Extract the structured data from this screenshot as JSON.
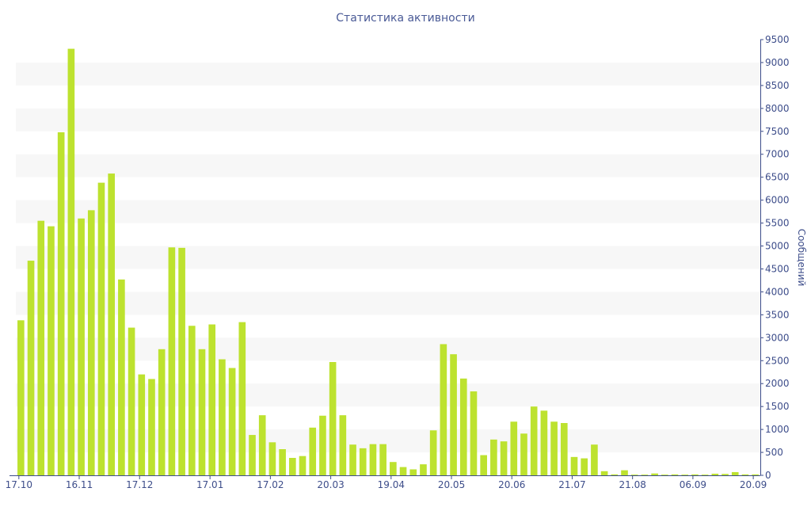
{
  "chart_data": {
    "type": "bar",
    "title": "Статистика активности",
    "xlabel": "",
    "ylabel": "Сообщений",
    "ylim": [
      0,
      9500
    ],
    "y_ticks": [
      0,
      500,
      1000,
      1500,
      2000,
      2500,
      3000,
      3500,
      4000,
      4500,
      5000,
      5500,
      6000,
      6500,
      7000,
      7500,
      8000,
      8500,
      9000,
      9500
    ],
    "y_axis_side": "right",
    "grid": "alternating horizontal bands",
    "bar_color": "#bde22f",
    "band_color": "#f7f7f7",
    "text_color": "#3d4d8a",
    "x_tick_labels": [
      {
        "label": "17.10",
        "index": 0
      },
      {
        "label": "16.11",
        "index": 6
      },
      {
        "label": "17.12",
        "index": 12
      },
      {
        "label": "17.01",
        "index": 19
      },
      {
        "label": "17.02",
        "index": 25
      },
      {
        "label": "20.03",
        "index": 31
      },
      {
        "label": "19.04",
        "index": 37
      },
      {
        "label": "20.05",
        "index": 43
      },
      {
        "label": "20.06",
        "index": 49
      },
      {
        "label": "21.07",
        "index": 55
      },
      {
        "label": "21.08",
        "index": 61
      },
      {
        "label": "06.09",
        "index": 67
      },
      {
        "label": "20.09",
        "index": 73
      }
    ],
    "values": [
      3380,
      4680,
      5550,
      5430,
      7480,
      9300,
      5600,
      5780,
      6380,
      6580,
      4270,
      3220,
      2200,
      2100,
      2750,
      4970,
      4960,
      3260,
      2750,
      3290,
      2530,
      2340,
      3340,
      880,
      1310,
      720,
      570,
      380,
      420,
      1040,
      1300,
      2470,
      1310,
      670,
      590,
      680,
      680,
      290,
      180,
      130,
      240,
      980,
      2860,
      2640,
      2110,
      1830,
      440,
      780,
      740,
      1170,
      910,
      1500,
      1410,
      1170,
      1140,
      400,
      370,
      670,
      90,
      20,
      110,
      15,
      15,
      40,
      15,
      20,
      15,
      20,
      15,
      35,
      30,
      70,
      20,
      20
    ]
  }
}
